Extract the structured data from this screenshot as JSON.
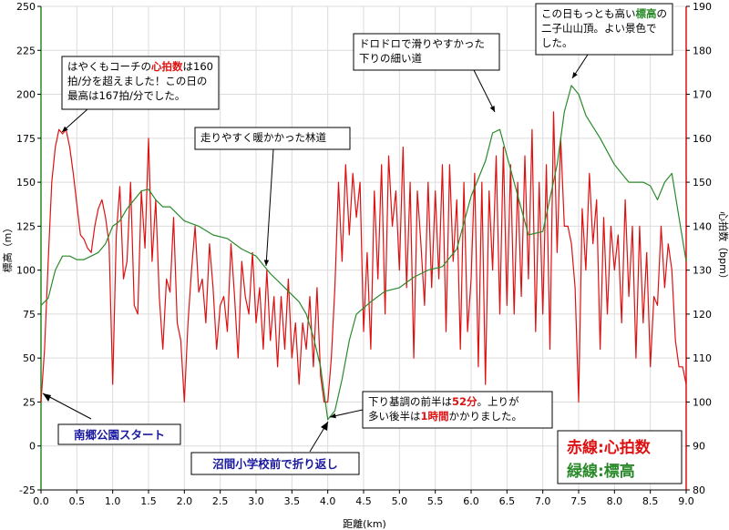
{
  "colors": {
    "heart": "#dd1111",
    "elev": "#2a8a2a",
    "label_blue": "#1a1aa0",
    "grid": "#dcdcdc"
  },
  "chart_data": {
    "type": "line",
    "xlabel": "距離(km)",
    "ylabel_left": "標高（m）",
    "ylabel_right": "心拍数（bpm）",
    "xlim": [
      0,
      9.0
    ],
    "ylim_left": [
      -25,
      250
    ],
    "ylim_right": [
      80,
      190
    ],
    "x_ticks": [
      "0.0",
      "0.5",
      "1.0",
      "1.5",
      "2.0",
      "2.5",
      "3.0",
      "3.5",
      "4.0",
      "4.5",
      "5.0",
      "5.5",
      "6.0",
      "6.5",
      "7.0",
      "7.5",
      "8.0",
      "8.5",
      "9.0"
    ],
    "y_ticks_left": [
      "-25",
      "0",
      "25",
      "50",
      "75",
      "100",
      "125",
      "150",
      "175",
      "200",
      "225",
      "250"
    ],
    "y_ticks_right": [
      "80",
      "90",
      "100",
      "110",
      "120",
      "130",
      "140",
      "150",
      "160",
      "170",
      "180",
      "190"
    ],
    "grid": true,
    "legend": {
      "position": "bottom-right",
      "heart_label": "赤線:心拍数",
      "elev_label": "緑線:標高"
    },
    "series": [
      {
        "name": "心拍数",
        "axis": "right",
        "x": [
          0.0,
          0.05,
          0.1,
          0.15,
          0.2,
          0.25,
          0.3,
          0.35,
          0.4,
          0.45,
          0.5,
          0.55,
          0.6,
          0.65,
          0.7,
          0.75,
          0.8,
          0.85,
          0.9,
          0.95,
          1.0,
          1.05,
          1.1,
          1.15,
          1.2,
          1.25,
          1.3,
          1.35,
          1.4,
          1.45,
          1.5,
          1.55,
          1.6,
          1.65,
          1.7,
          1.75,
          1.8,
          1.85,
          1.9,
          1.95,
          2.0,
          2.05,
          2.1,
          2.15,
          2.2,
          2.25,
          2.3,
          2.35,
          2.4,
          2.45,
          2.5,
          2.55,
          2.6,
          2.65,
          2.7,
          2.75,
          2.8,
          2.85,
          2.9,
          2.95,
          3.0,
          3.05,
          3.1,
          3.15,
          3.2,
          3.25,
          3.3,
          3.35,
          3.4,
          3.45,
          3.5,
          3.55,
          3.6,
          3.65,
          3.7,
          3.75,
          3.8,
          3.85,
          3.9,
          3.95,
          4.0,
          4.05,
          4.1,
          4.15,
          4.2,
          4.25,
          4.3,
          4.35,
          4.4,
          4.45,
          4.5,
          4.55,
          4.6,
          4.65,
          4.7,
          4.75,
          4.8,
          4.85,
          4.9,
          4.95,
          5.0,
          5.05,
          5.1,
          5.15,
          5.2,
          5.25,
          5.3,
          5.35,
          5.4,
          5.45,
          5.5,
          5.55,
          5.6,
          5.65,
          5.7,
          5.75,
          5.8,
          5.85,
          5.9,
          5.95,
          6.0,
          6.05,
          6.1,
          6.15,
          6.2,
          6.25,
          6.3,
          6.35,
          6.4,
          6.45,
          6.5,
          6.55,
          6.6,
          6.65,
          6.7,
          6.75,
          6.8,
          6.85,
          6.9,
          6.95,
          7.0,
          7.05,
          7.1,
          7.15,
          7.2,
          7.25,
          7.3,
          7.35,
          7.4,
          7.45,
          7.5,
          7.55,
          7.6,
          7.65,
          7.7,
          7.75,
          7.8,
          7.85,
          7.9,
          7.95,
          8.0,
          8.05,
          8.1,
          8.15,
          8.2,
          8.25,
          8.3,
          8.35,
          8.4,
          8.45,
          8.5,
          8.55,
          8.6,
          8.65,
          8.7,
          8.75,
          8.8,
          8.85,
          8.9,
          8.95,
          9.0
        ],
        "values": [
          100,
          112,
          132,
          150,
          158,
          162,
          161,
          162,
          158,
          152,
          145,
          138,
          137,
          135,
          134,
          140,
          144,
          146,
          142,
          136,
          104,
          138,
          149,
          128,
          132,
          150,
          122,
          120,
          148,
          135,
          160,
          132,
          146,
          124,
          112,
          128,
          125,
          142,
          118,
          114,
          100,
          118,
          130,
          140,
          125,
          128,
          118,
          136,
          126,
          112,
          122,
          124,
          116,
          136,
          124,
          110,
          132,
          124,
          120,
          134,
          118,
          126,
          112,
          130,
          114,
          124,
          108,
          124,
          112,
          128,
          110,
          118,
          104,
          118,
          112,
          124,
          108,
          126,
          106,
          100,
          100,
          110,
          126,
          150,
          132,
          154,
          138,
          152,
          142,
          150,
          116,
          134,
          112,
          148,
          128,
          154,
          120,
          156,
          140,
          148,
          130,
          158,
          126,
          150,
          110,
          148,
          136,
          122,
          150,
          126,
          148,
          128,
          154,
          116,
          154,
          132,
          146,
          112,
          150,
          116,
          128,
          152,
          108,
          150,
          104,
          148,
          130,
          156,
          120,
          158,
          122,
          154,
          120,
          150,
          124,
          156,
          128,
          162,
          116,
          150,
          120,
          154,
          112,
          166,
          134,
          160,
          140,
          140,
          136,
          126,
          100,
          144,
          130,
          152,
          136,
          146,
          112,
          142,
          120,
          140,
          130,
          138,
          118,
          146,
          124,
          140,
          110,
          140,
          118,
          134,
          108,
          124,
          122,
          140,
          126,
          136,
          130,
          114,
          108,
          108,
          104
        ]
      },
      {
        "name": "標高",
        "axis": "left",
        "x": [
          0.0,
          0.1,
          0.2,
          0.3,
          0.4,
          0.5,
          0.6,
          0.7,
          0.8,
          0.9,
          1.0,
          1.1,
          1.2,
          1.3,
          1.4,
          1.5,
          1.6,
          1.7,
          1.8,
          1.9,
          2.0,
          2.2,
          2.4,
          2.6,
          2.8,
          3.0,
          3.2,
          3.4,
          3.6,
          3.7,
          3.8,
          3.9,
          4.0,
          4.1,
          4.2,
          4.3,
          4.4,
          4.6,
          4.8,
          5.0,
          5.2,
          5.4,
          5.6,
          5.8,
          6.0,
          6.2,
          6.3,
          6.4,
          6.5,
          6.6,
          6.8,
          7.0,
          7.2,
          7.3,
          7.4,
          7.5,
          7.6,
          7.8,
          8.0,
          8.2,
          8.4,
          8.5,
          8.6,
          8.7,
          8.8,
          8.9,
          9.0
        ],
        "values": [
          80,
          84,
          100,
          108,
          108,
          106,
          106,
          108,
          110,
          115,
          125,
          128,
          135,
          140,
          145,
          146,
          140,
          136,
          136,
          132,
          128,
          125,
          120,
          118,
          112,
          108,
          98,
          90,
          82,
          75,
          62,
          45,
          15,
          20,
          38,
          60,
          75,
          82,
          88,
          90,
          96,
          100,
          102,
          112,
          142,
          162,
          178,
          180,
          165,
          150,
          120,
          122,
          160,
          190,
          205,
          200,
          188,
          175,
          160,
          150,
          150,
          148,
          140,
          150,
          155,
          130,
          105
        ]
      }
    ]
  },
  "annotations": [
    {
      "id": "peak-heart",
      "lines": [
        [
          {
            "t": "はやくもコーチの"
          },
          {
            "t": "心拍数",
            "c": "red"
          },
          {
            "t": "は160"
          }
        ],
        [
          {
            "t": "拍/分を超えました！この日の"
          }
        ],
        [
          {
            "t": "最高は167拍/分でした。"
          }
        ]
      ]
    },
    {
      "id": "forest-road",
      "lines": [
        [
          {
            "t": "走りやすく暖かかった林道"
          }
        ]
      ]
    },
    {
      "id": "muddy-path",
      "lines": [
        [
          {
            "t": "ドロドロで滑りやすかった"
          }
        ],
        [
          {
            "t": "下りの細い道"
          }
        ]
      ]
    },
    {
      "id": "summit",
      "lines": [
        [
          {
            "t": "この日もっとも高い"
          },
          {
            "t": "標高",
            "c": "green"
          },
          {
            "t": "の"
          }
        ],
        [
          {
            "t": "二子山山頂。よい景色で"
          }
        ],
        [
          {
            "t": "した。"
          }
        ]
      ]
    },
    {
      "id": "turnaround-note",
      "lines": [
        [
          {
            "t": "下り基調の前半は"
          },
          {
            "t": "52分",
            "c": "red"
          },
          {
            "t": "。上りが"
          }
        ],
        [
          {
            "t": "多い後半は"
          },
          {
            "t": "1時間",
            "c": "red"
          },
          {
            "t": "かかりました。"
          }
        ]
      ]
    }
  ],
  "labels": {
    "start": "南郷公園スタート",
    "turnaround": "沼間小学校前で折り返し"
  }
}
